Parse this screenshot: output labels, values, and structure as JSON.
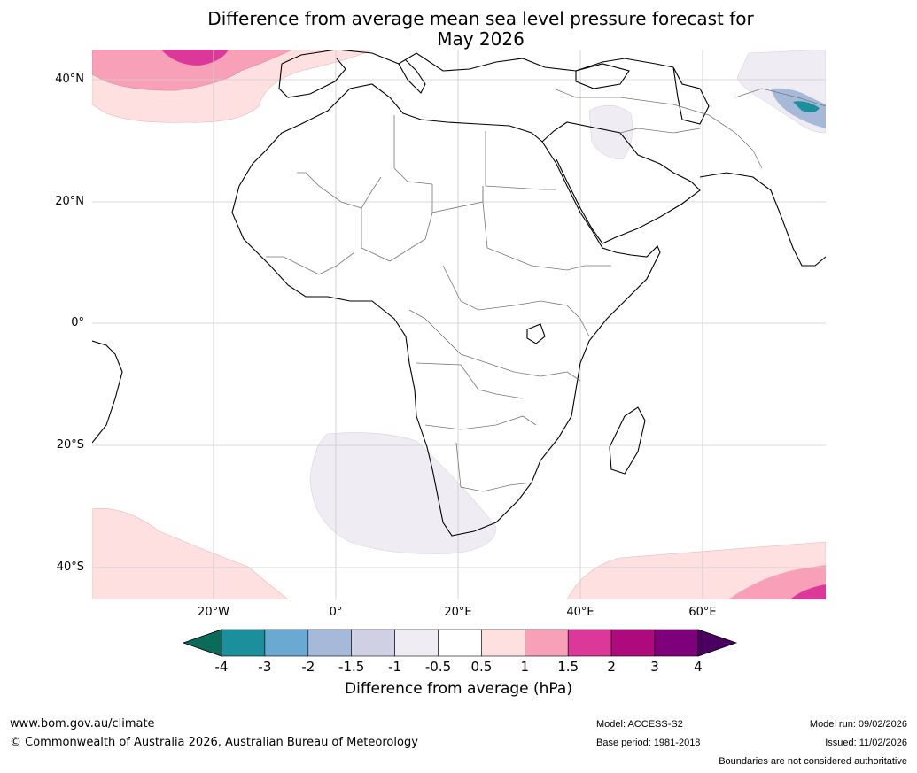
{
  "title_line1": "Difference from average mean sea level pressure forecast for",
  "title_line2": "May 2026",
  "lat_labels": [
    "40°N",
    "20°N",
    "0°",
    "20°S",
    "40°S"
  ],
  "lon_labels": [
    "20°W",
    "0°",
    "20°E",
    "40°E",
    "60°E"
  ],
  "colorbar": {
    "ticks": [
      "-4",
      "-3",
      "-2",
      "-1.5",
      "-1",
      "-0.5",
      "0.5",
      "1",
      "1.5",
      "2",
      "3",
      "4"
    ],
    "colors": [
      "#1b8f9b",
      "#6aa9d2",
      "#a6b9d9",
      "#cfd0e4",
      "#f0ecf3",
      "#ffffff",
      "#fde0df",
      "#f8a0b8",
      "#dc389a",
      "#ae0a7e",
      "#7e007a"
    ],
    "under_color": "#0b6b5b",
    "over_color": "#4a0060",
    "label": "Difference from average (hPa)"
  },
  "footer": {
    "url": "www.bom.gov.au/climate",
    "copyright": "© Commonwealth of Australia 2026, Australian Bureau of Meteorology",
    "model": "Model: ACCESS-S2",
    "base_period": "Base period: 1981-2018",
    "model_run": "Model run: 09/02/2026",
    "issued": "Issued: 11/02/2026",
    "disclaimer": "Boundaries are not considered authoritative"
  }
}
